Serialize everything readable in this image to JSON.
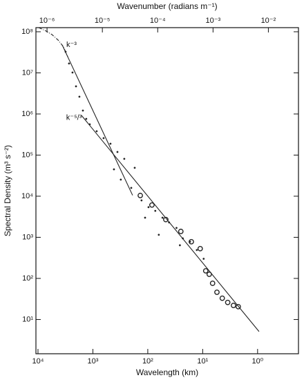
{
  "chart_data": {
    "type": "scatter",
    "title": "Wavenumber (radians m⁻¹)",
    "xlabel": "Wavelength (km)",
    "ylabel": "Spectral Density (m³ s⁻²)",
    "log_x": true,
    "log_y": true,
    "log_x2": true,
    "xlim": [
      10900,
      0.18
    ],
    "xticks": [
      {
        "value": 10000,
        "label": "10⁴"
      },
      {
        "value": 1000,
        "label": "10³"
      },
      {
        "value": 100,
        "label": "10²"
      },
      {
        "value": 10,
        "label": "10¹"
      },
      {
        "value": 1,
        "label": "10⁰"
      }
    ],
    "x2lim": [
      6.3e-07,
      0.035
    ],
    "x2ticks": [
      {
        "value": 1e-06,
        "label": "10⁻⁶"
      },
      {
        "value": 1e-05,
        "label": "10⁻⁵"
      },
      {
        "value": 0.0001,
        "label": "10⁻⁴"
      },
      {
        "value": 0.001,
        "label": "10⁻³"
      },
      {
        "value": 0.01,
        "label": "10⁻²"
      }
    ],
    "ylim": [
      1.47,
      126000000.0
    ],
    "yticks": [
      {
        "value": 10,
        "label": "10¹"
      },
      {
        "value": 100,
        "label": "10²"
      },
      {
        "value": 1000,
        "label": "10³"
      },
      {
        "value": 10000,
        "label": "10⁴"
      },
      {
        "value": 100000,
        "label": "10⁵"
      },
      {
        "value": 1000000,
        "label": "10⁶"
      },
      {
        "value": 10000000,
        "label": "10⁷"
      },
      {
        "value": 100000000,
        "label": "10⁸"
      }
    ],
    "series": [
      {
        "marker": "dashdot",
        "color": "#222222",
        "x": [
          9710,
          7480,
          5600,
          4310,
          3430,
          2880
        ],
        "values": [
          126000000.0,
          108000000.0,
          86000000.0,
          63000000.0,
          43000000.0,
          24800000.0
        ]
      },
      {
        "marker": "dot",
        "color": "#222222",
        "x": [
          3140,
          2720,
          2350,
          2030,
          1760,
          1520,
          1320,
          1140,
          853,
          638,
          478,
          357,
          268,
          173,
          413,
          310,
          200,
          130,
          97,
          73,
          54,
          41,
          30,
          23,
          17,
          12.8,
          9.6,
          63,
          26,
          112
        ],
        "values": [
          32600000.0,
          16900000.0,
          10200000.0,
          4700000.0,
          2630000.0,
          1210000.0,
          760000.0,
          560000.0,
          380000.0,
          258000.0,
          189000.0,
          119000.0,
          81000.0,
          49000.0,
          45000.0,
          25300.0,
          15900.0,
          7900,
          5400,
          4400,
          3000,
          2300,
          1690,
          940,
          780,
          490,
          300,
          1150,
          640,
          3000
        ]
      },
      {
        "marker": "circle",
        "color": "#222222",
        "x": [
          137,
          84,
          47,
          25,
          16.1,
          11.1,
          8.8,
          7.6,
          6.6,
          5.5,
          4.4,
          3.5,
          2.75,
          2.25
        ],
        "values": [
          10400,
          6100,
          2700,
          1390,
          780,
          530,
          153,
          126,
          76,
          46,
          33,
          26,
          22,
          20.5
        ]
      },
      {
        "marker": "line",
        "color": "#222222",
        "label": "k⁻³",
        "x": [
          3630,
          189
        ],
        "values": [
          48000000.0,
          10500
        ]
      },
      {
        "marker": "line",
        "color": "#222222",
        "label": "k⁻⁵/³",
        "x": [
          1620,
          0.94
        ],
        "values": [
          930000,
          5.1
        ]
      }
    ]
  }
}
